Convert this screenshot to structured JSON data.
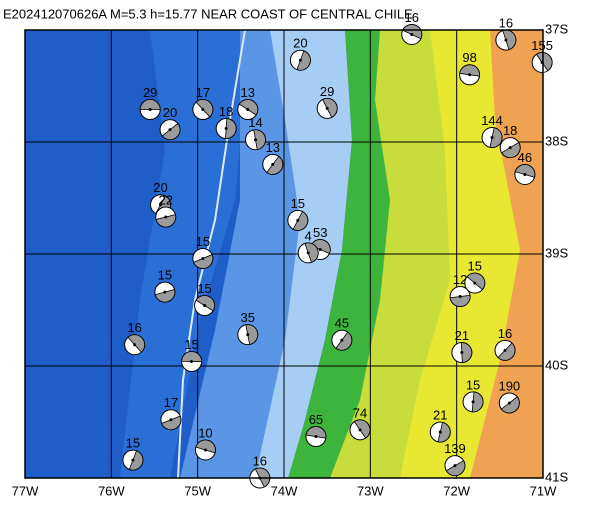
{
  "title": "E202412070626A M=5.3 h=15.77 NEAR COAST OF CENTRAL CHILE",
  "lonlim": [
    -77,
    -71
  ],
  "latlim": [
    -37,
    -41
  ],
  "xticks": [
    {
      "value": -77,
      "label": "77W"
    },
    {
      "value": -76,
      "label": "76W"
    },
    {
      "value": -75,
      "label": "75W"
    },
    {
      "value": -74,
      "label": "74W"
    },
    {
      "value": -73,
      "label": "73W"
    },
    {
      "value": -72,
      "label": "72W"
    },
    {
      "value": -71,
      "label": "71W"
    }
  ],
  "yticks": [
    {
      "value": -37,
      "label": "37S"
    },
    {
      "value": -38,
      "label": "38S"
    },
    {
      "value": -39,
      "label": "39S"
    },
    {
      "value": -40,
      "label": "40S"
    },
    {
      "value": -41,
      "label": "41S"
    }
  ],
  "events": [
    {
      "label": "29",
      "lon": -75.55,
      "lat": -37.71
    },
    {
      "label": "17",
      "lon": -74.94,
      "lat": -37.71
    },
    {
      "label": "18",
      "lon": -74.67,
      "lat": -37.88
    },
    {
      "label": "20",
      "lon": -75.32,
      "lat": -37.89
    },
    {
      "label": "98",
      "lon": -71.85,
      "lat": -37.4
    },
    {
      "label": "155",
      "lon": -71.01,
      "lat": -37.29
    },
    {
      "label": "144",
      "lon": -71.59,
      "lat": -37.96
    },
    {
      "label": "18",
      "lon": -71.38,
      "lat": -38.05
    },
    {
      "label": "46",
      "lon": -71.21,
      "lat": -38.29
    },
    {
      "label": "29",
      "lon": -73.5,
      "lat": -37.7
    },
    {
      "label": "20",
      "lon": -73.81,
      "lat": -37.27
    },
    {
      "label": "15",
      "lon": -74.94,
      "lat": -39.04
    },
    {
      "label": "53",
      "lon": -73.58,
      "lat": -38.96
    },
    {
      "label": "4",
      "lon": -73.72,
      "lat": -38.99
    },
    {
      "label": "15",
      "lon": -73.84,
      "lat": -38.7
    },
    {
      "label": "15",
      "lon": -75.38,
      "lat": -39.34
    },
    {
      "label": "15",
      "lon": -74.92,
      "lat": -39.46
    },
    {
      "label": "35",
      "lon": -74.42,
      "lat": -39.72
    },
    {
      "label": "45",
      "lon": -73.33,
      "lat": -39.77
    },
    {
      "label": "12",
      "lon": -71.96,
      "lat": -39.38
    },
    {
      "label": "15",
      "lon": -71.79,
      "lat": -39.26
    },
    {
      "label": "21",
      "lon": -71.94,
      "lat": -39.88
    },
    {
      "label": "16",
      "lon": -71.44,
      "lat": -39.86
    },
    {
      "label": "15",
      "lon": -75.07,
      "lat": -39.96
    },
    {
      "label": "16",
      "lon": -75.73,
      "lat": -39.81
    },
    {
      "label": "15",
      "lon": -71.81,
      "lat": -40.32
    },
    {
      "label": "190",
      "lon": -71.39,
      "lat": -40.33
    },
    {
      "label": "65",
      "lon": -73.63,
      "lat": -40.63
    },
    {
      "label": "74",
      "lon": -73.12,
      "lat": -40.57
    },
    {
      "label": "21",
      "lon": -72.19,
      "lat": -40.59
    },
    {
      "label": "139",
      "lon": -72.02,
      "lat": -40.89
    },
    {
      "label": "10",
      "lon": -74.91,
      "lat": -40.75
    },
    {
      "label": "16",
      "lon": -74.28,
      "lat": -41.0
    },
    {
      "label": "15",
      "lon": -75.75,
      "lat": -40.84
    },
    {
      "label": "17",
      "lon": -75.31,
      "lat": -40.48
    },
    {
      "label": "16",
      "lon": -72.52,
      "lat": -37.04
    },
    {
      "label": "16",
      "lon": -71.43,
      "lat": -37.09
    },
    {
      "label": "20",
      "lon": -75.43,
      "lat": -38.56
    },
    {
      "label": "22",
      "lon": -75.37,
      "lat": -38.67
    },
    {
      "label": "13",
      "lon": -74.42,
      "lat": -37.71
    },
    {
      "label": "14",
      "lon": -74.33,
      "lat": -37.98
    },
    {
      "label": "13",
      "lon": -74.13,
      "lat": -38.2
    }
  ]
}
